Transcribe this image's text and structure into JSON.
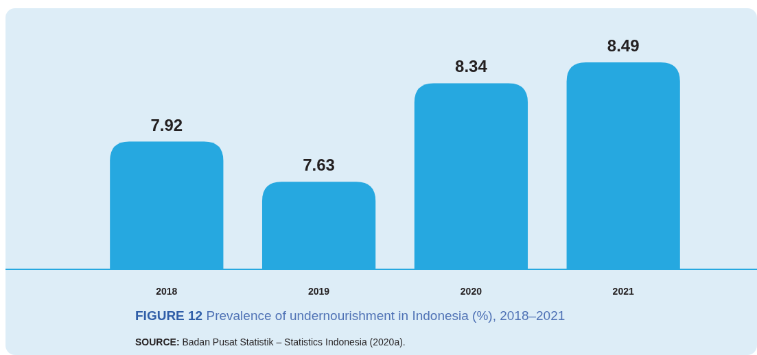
{
  "chart_data": {
    "type": "bar",
    "title": "FIGURE 12 Prevalence of undernourishment in Indonesia (%), 2018–2021",
    "categories": [
      "2018",
      "2019",
      "2020",
      "2021"
    ],
    "values": [
      7.92,
      7.63,
      8.34,
      8.49
    ],
    "color": "#26a8e0",
    "ylim": [
      7,
      8.88
    ],
    "data_labels": true,
    "annotations": [
      "SOURCE: Badan Pusat Statistik – Statistics Indonesia (2020a)."
    ]
  }
}
